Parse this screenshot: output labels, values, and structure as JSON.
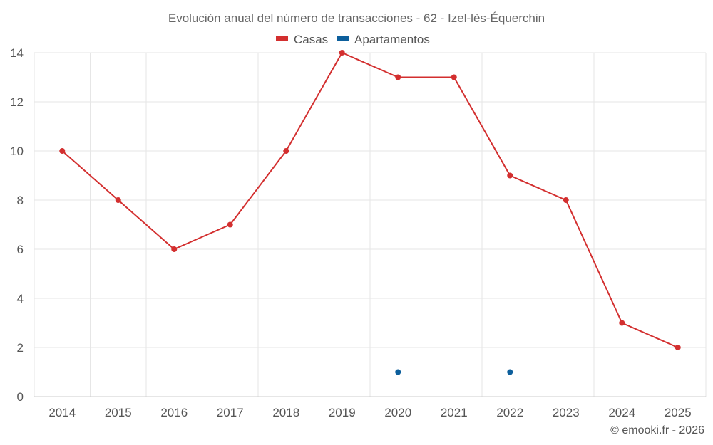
{
  "chart_data": {
    "type": "line",
    "title": "Evolución anual del número de transacciones - 62 - Izel-lès-Équerchin",
    "xlabel": "",
    "ylabel": "",
    "categories": [
      "2014",
      "2015",
      "2016",
      "2017",
      "2018",
      "2019",
      "2020",
      "2021",
      "2022",
      "2023",
      "2024",
      "2025"
    ],
    "ylim": [
      0,
      14
    ],
    "yticks": [
      0,
      2,
      4,
      6,
      8,
      10,
      12,
      14
    ],
    "grid": true,
    "legend_position": "top-center",
    "series": [
      {
        "name": "Casas",
        "color": "#d32f2f",
        "mode": "line+markers",
        "values": [
          10,
          8,
          6,
          7,
          10,
          14,
          13,
          13,
          9,
          8,
          3,
          2
        ]
      },
      {
        "name": "Apartamentos",
        "color": "#0d5f9c",
        "mode": "markers",
        "values": [
          null,
          null,
          null,
          null,
          null,
          null,
          1,
          null,
          1,
          null,
          null,
          null
        ]
      }
    ]
  },
  "credit": "© emooki.fr - 2026"
}
